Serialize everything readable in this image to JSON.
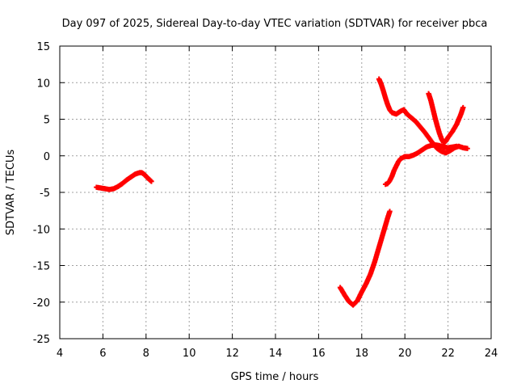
{
  "chart_data": {
    "type": "scatter",
    "title": "Day 097 of 2025, Sidereal Day-to-day VTEC variation (SDTVAR) for receiver pbca",
    "xlabel": "GPS time / hours",
    "ylabel": "SDTVAR / TECUs",
    "xlim": [
      4,
      24
    ],
    "ylim": [
      -25,
      15
    ],
    "x_ticks": [
      4,
      6,
      8,
      10,
      12,
      14,
      16,
      18,
      20,
      22,
      24
    ],
    "y_ticks": [
      -25,
      -20,
      -15,
      -10,
      -5,
      0,
      5,
      10,
      15
    ],
    "grid": true,
    "marker": "+",
    "color": "#ff0000",
    "series": [
      {
        "x": [
          5.7,
          5.9,
          6.1,
          6.3,
          6.5,
          6.7,
          6.9,
          7.1,
          7.3,
          7.5,
          7.7,
          7.8,
          7.9,
          8.0,
          8.1,
          8.25
        ],
        "y": [
          -4.3,
          -4.4,
          -4.5,
          -4.6,
          -4.5,
          -4.2,
          -3.8,
          -3.3,
          -2.9,
          -2.5,
          -2.3,
          -2.3,
          -2.5,
          -2.8,
          -3.1,
          -3.5
        ]
      },
      {
        "x": [
          17.0,
          17.2,
          17.4,
          17.6,
          17.8,
          18.0,
          18.2,
          18.4,
          18.6,
          18.8,
          19.0,
          19.1,
          19.2,
          19.3
        ],
        "y": [
          -18.0,
          -19.0,
          -19.9,
          -20.4,
          -19.8,
          -18.6,
          -17.5,
          -16.2,
          -14.5,
          -12.5,
          -10.5,
          -9.5,
          -8.5,
          -7.6
        ]
      },
      {
        "x": [
          18.8,
          18.9,
          19.0,
          19.1,
          19.2,
          19.3,
          19.4,
          19.6,
          19.8,
          19.95,
          20.1,
          20.3,
          20.5,
          20.7,
          20.9,
          21.1,
          21.3,
          21.5,
          21.7,
          21.9,
          22.1,
          22.3,
          22.5,
          22.7,
          22.9
        ],
        "y": [
          10.5,
          9.8,
          8.9,
          7.9,
          7.0,
          6.3,
          5.9,
          5.7,
          6.1,
          6.3,
          5.7,
          5.2,
          4.7,
          4.0,
          3.3,
          2.5,
          1.7,
          1.0,
          0.6,
          0.4,
          0.7,
          1.1,
          1.3,
          1.1,
          1.0
        ]
      },
      {
        "x": [
          21.1,
          21.2,
          21.3,
          21.4,
          21.5,
          21.6,
          21.7,
          21.8,
          21.9,
          22.0,
          22.2,
          22.4,
          22.5,
          22.6,
          22.7
        ],
        "y": [
          8.5,
          7.6,
          6.4,
          5.2,
          4.1,
          3.1,
          2.3,
          1.8,
          2.0,
          2.5,
          3.3,
          4.3,
          5.0,
          5.7,
          6.6
        ]
      },
      {
        "x": [
          19.1,
          19.2,
          19.3,
          19.4,
          19.5,
          19.6,
          19.7,
          19.8,
          20.0,
          20.2,
          20.4,
          20.6,
          20.8,
          21.0,
          21.2,
          21.4,
          21.6,
          21.8,
          22.0,
          22.2,
          22.4
        ],
        "y": [
          -3.9,
          -3.8,
          -3.4,
          -2.8,
          -2.0,
          -1.4,
          -0.8,
          -0.4,
          -0.1,
          -0.1,
          0.1,
          0.4,
          0.8,
          1.2,
          1.4,
          1.5,
          1.4,
          1.2,
          1.1,
          1.2,
          1.3
        ]
      }
    ]
  }
}
